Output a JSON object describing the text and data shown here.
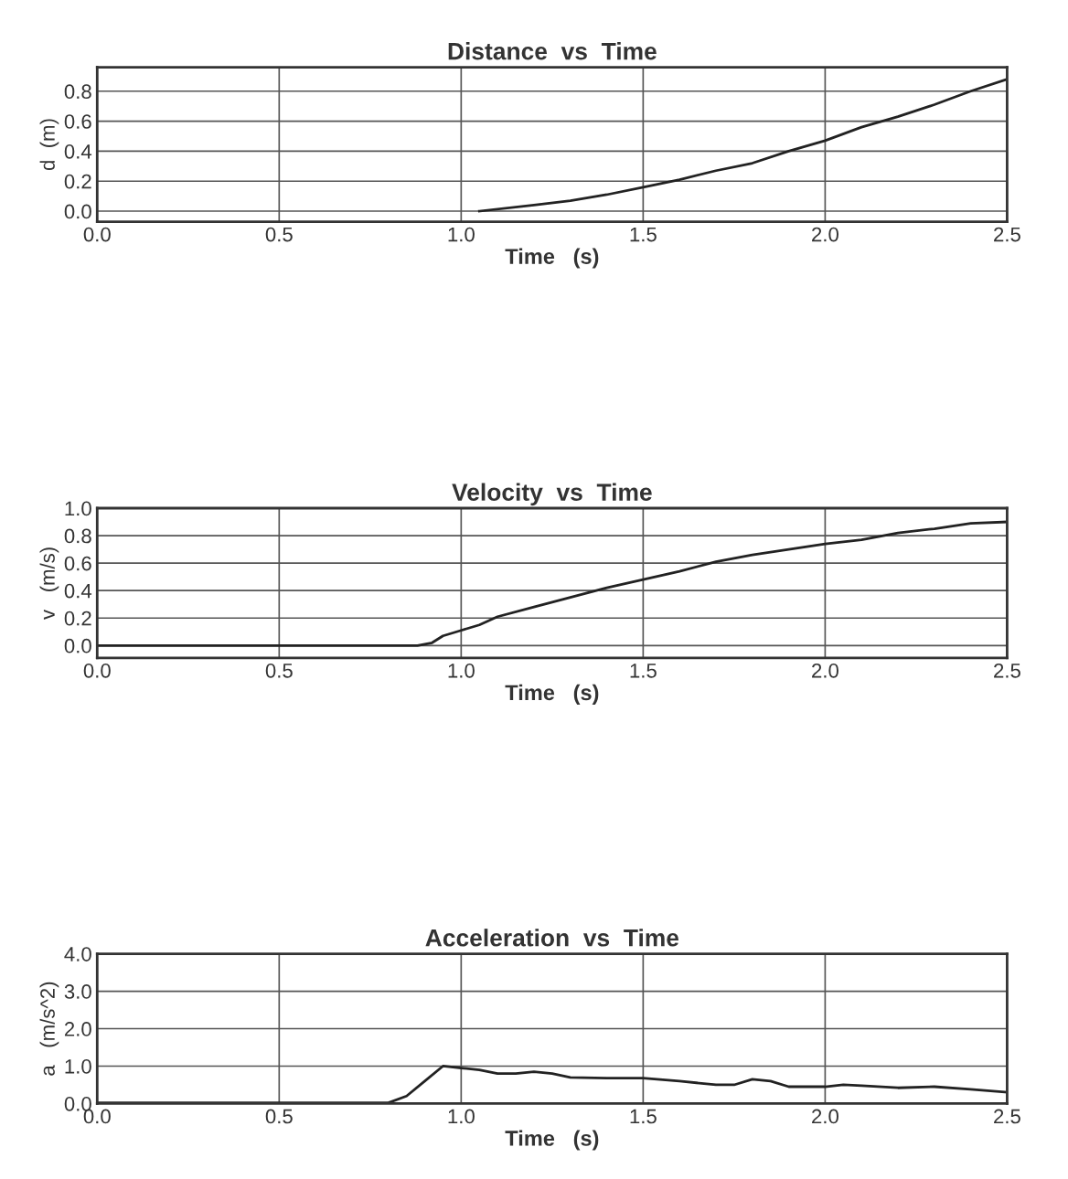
{
  "chart_data": [
    {
      "type": "line",
      "title": "Distance  vs  Time",
      "xlabel": "Time   (s)",
      "ylabel": "d  (m)",
      "xlim": [
        0,
        2.5
      ],
      "xticks": [
        {
          "value": 0,
          "label": "0.0"
        },
        0.5,
        {
          "value": 1,
          "label": "1.0"
        },
        1.5,
        {
          "value": 2,
          "label": "2.0"
        },
        2.5
      ],
      "ylim": [
        -0.07,
        0.96
      ],
      "yticks": [
        {
          "value": 0,
          "label": "0.0"
        },
        0.2,
        0.4,
        0.6,
        0.8
      ],
      "grid": true,
      "legend": false,
      "series": [
        {
          "color": "#222222",
          "x": [
            1.05,
            1.2,
            1.3,
            1.4,
            1.5,
            1.6,
            1.7,
            1.8,
            1.9,
            2.0,
            2.1,
            2.2,
            2.3,
            2.4,
            2.5
          ],
          "values": [
            0.0,
            0.04,
            0.07,
            0.11,
            0.16,
            0.21,
            0.27,
            0.32,
            0.4,
            0.47,
            0.56,
            0.63,
            0.71,
            0.8,
            0.88
          ]
        }
      ]
    },
    {
      "type": "line",
      "title": "Velocity  vs  Time",
      "xlabel": "Time   (s)",
      "ylabel": "v   (m/s)",
      "xlim": [
        0,
        2.5
      ],
      "xticks": [
        {
          "value": 0,
          "label": "0.0"
        },
        0.5,
        {
          "value": 1,
          "label": "1.0"
        },
        1.5,
        {
          "value": 2,
          "label": "2.0"
        },
        2.5
      ],
      "ylim": [
        -0.09,
        1.0
      ],
      "yticks": [
        {
          "value": 0,
          "label": "0.0"
        },
        0.2,
        0.4,
        0.6,
        0.8,
        {
          "value": 1,
          "label": "1.0"
        }
      ],
      "grid": true,
      "legend": false,
      "series": [
        {
          "color": "#222222",
          "x": [
            0,
            0.5,
            0.88,
            0.92,
            0.95,
            1.0,
            1.05,
            1.1,
            1.2,
            1.3,
            1.4,
            1.5,
            1.6,
            1.7,
            1.8,
            1.9,
            2.0,
            2.1,
            2.2,
            2.3,
            2.4,
            2.5
          ],
          "values": [
            0.0,
            0.0,
            0.0,
            0.02,
            0.07,
            0.11,
            0.15,
            0.21,
            0.28,
            0.35,
            0.42,
            0.48,
            0.54,
            0.61,
            0.66,
            0.7,
            0.74,
            0.77,
            0.82,
            0.85,
            0.89,
            0.9
          ]
        }
      ]
    },
    {
      "type": "line",
      "title": "Acceleration  vs  Time",
      "xlabel": "Time   (s)",
      "ylabel": "a   (m/s^2)",
      "xlim": [
        0,
        2.5
      ],
      "xticks": [
        {
          "value": 0,
          "label": "0.0"
        },
        0.5,
        {
          "value": 1,
          "label": "1.0"
        },
        1.5,
        {
          "value": 2,
          "label": "2.0"
        },
        2.5
      ],
      "ylim": [
        0,
        4
      ],
      "yticks": [
        {
          "value": 0,
          "label": "0.0"
        },
        {
          "value": 1,
          "label": "1.0"
        },
        {
          "value": 2,
          "label": "2.0"
        },
        {
          "value": 3,
          "label": "3.0"
        },
        {
          "value": 4,
          "label": "4.0"
        }
      ],
      "grid": true,
      "legend": false,
      "series": [
        {
          "color": "#222222",
          "x": [
            0,
            0.5,
            0.8,
            0.85,
            0.9,
            0.95,
            1.0,
            1.05,
            1.1,
            1.15,
            1.2,
            1.25,
            1.3,
            1.4,
            1.5,
            1.6,
            1.7,
            1.75,
            1.8,
            1.85,
            1.9,
            2.0,
            2.05,
            2.1,
            2.2,
            2.3,
            2.4,
            2.5
          ],
          "values": [
            0.02,
            0.02,
            0.02,
            0.2,
            0.6,
            1.0,
            0.95,
            0.9,
            0.8,
            0.8,
            0.85,
            0.8,
            0.7,
            0.68,
            0.68,
            0.6,
            0.5,
            0.5,
            0.65,
            0.6,
            0.45,
            0.45,
            0.5,
            0.48,
            0.42,
            0.45,
            0.38,
            0.3
          ]
        }
      ]
    }
  ]
}
